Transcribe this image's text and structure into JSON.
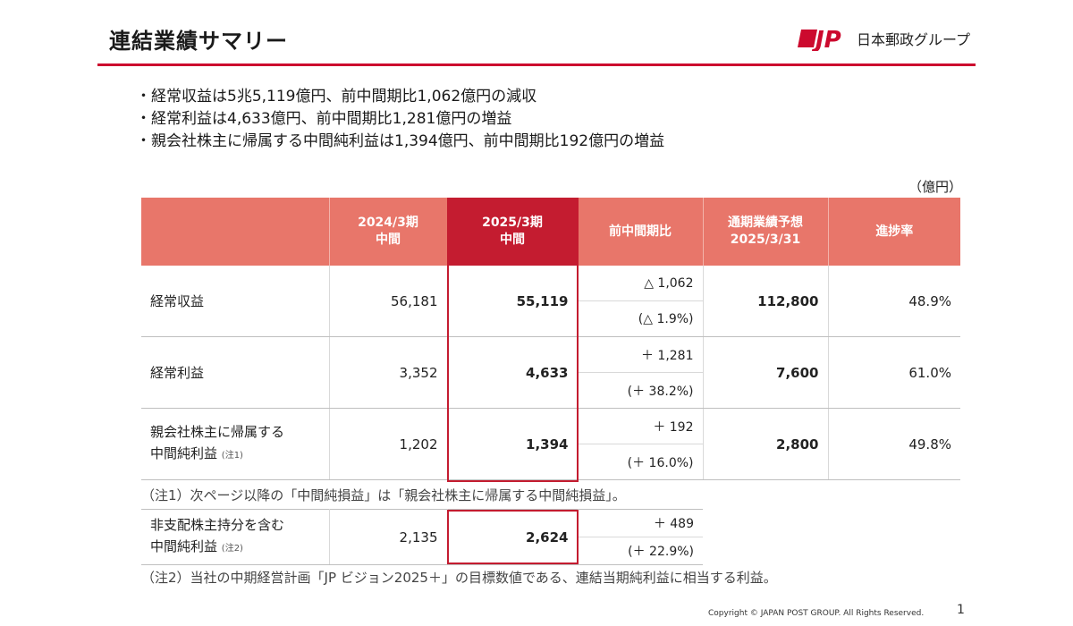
{
  "header": {
    "title": "連結業績サマリー",
    "logo_text": "日本郵政グループ"
  },
  "bullets": [
    "・経常収益は5兆5,119億円、前中間期比1,062億円の減収",
    "・経常利益は4,633億円、前中間期比1,281億円の増益",
    "・親会社株主に帰属する中間純利益は1,394億円、前中間期比192億円の増益"
  ],
  "unit": "（億円）",
  "table": {
    "headers": {
      "h2024": [
        "2024/3期",
        "中間"
      ],
      "h2025": [
        "2025/3期",
        "中間"
      ],
      "cmp": "前中間期比",
      "forecast": [
        "通期業績予想",
        "2025/3/31"
      ],
      "progress": "進捗率"
    },
    "rows": [
      {
        "label": "経常収益",
        "note": "",
        "v2024": "56,181",
        "v2025": "55,119",
        "diff": "△ 1,062",
        "pct": "(△ 1.9%)",
        "forecast": "112,800",
        "progress": "48.9%"
      },
      {
        "label": "経常利益",
        "note": "",
        "v2024": "3,352",
        "v2025": "4,633",
        "diff": "＋ 1,281",
        "pct": "(＋ 38.2%)",
        "forecast": "7,600",
        "progress": "61.0%"
      },
      {
        "label_line1": "親会社株主に帰属する",
        "label_line2": "中間純利益",
        "note": "(注1)",
        "v2024": "1,202",
        "v2025": "1,394",
        "diff": "＋ 192",
        "pct": "(＋ 16.0%)",
        "forecast": "2,800",
        "progress": "49.8%"
      }
    ],
    "note1": "（注1）次ページ以降の「中間純損益」は「親会社株主に帰属する中間純損益」。",
    "row4": {
      "label_line1": "非支配株主持分を含む",
      "label_line2": "中間純利益",
      "note": "(注2)",
      "v2024": "2,135",
      "v2025": "2,624",
      "diff": "＋ 489",
      "pct": "(＋ 22.9%)"
    },
    "note2": "（注2）当社の中期経営計画「JP ビジョン2025＋」の目標数値である、連結当期純利益に相当する利益。"
  },
  "footer": {
    "copyright": "Copyright ©  JAPAN POST GROUP. All Rights Reserved.",
    "page": "1"
  },
  "colors": {
    "accent": "#cc0a2e",
    "header_bg": "#e8766a",
    "highlight": "#c41c30"
  }
}
